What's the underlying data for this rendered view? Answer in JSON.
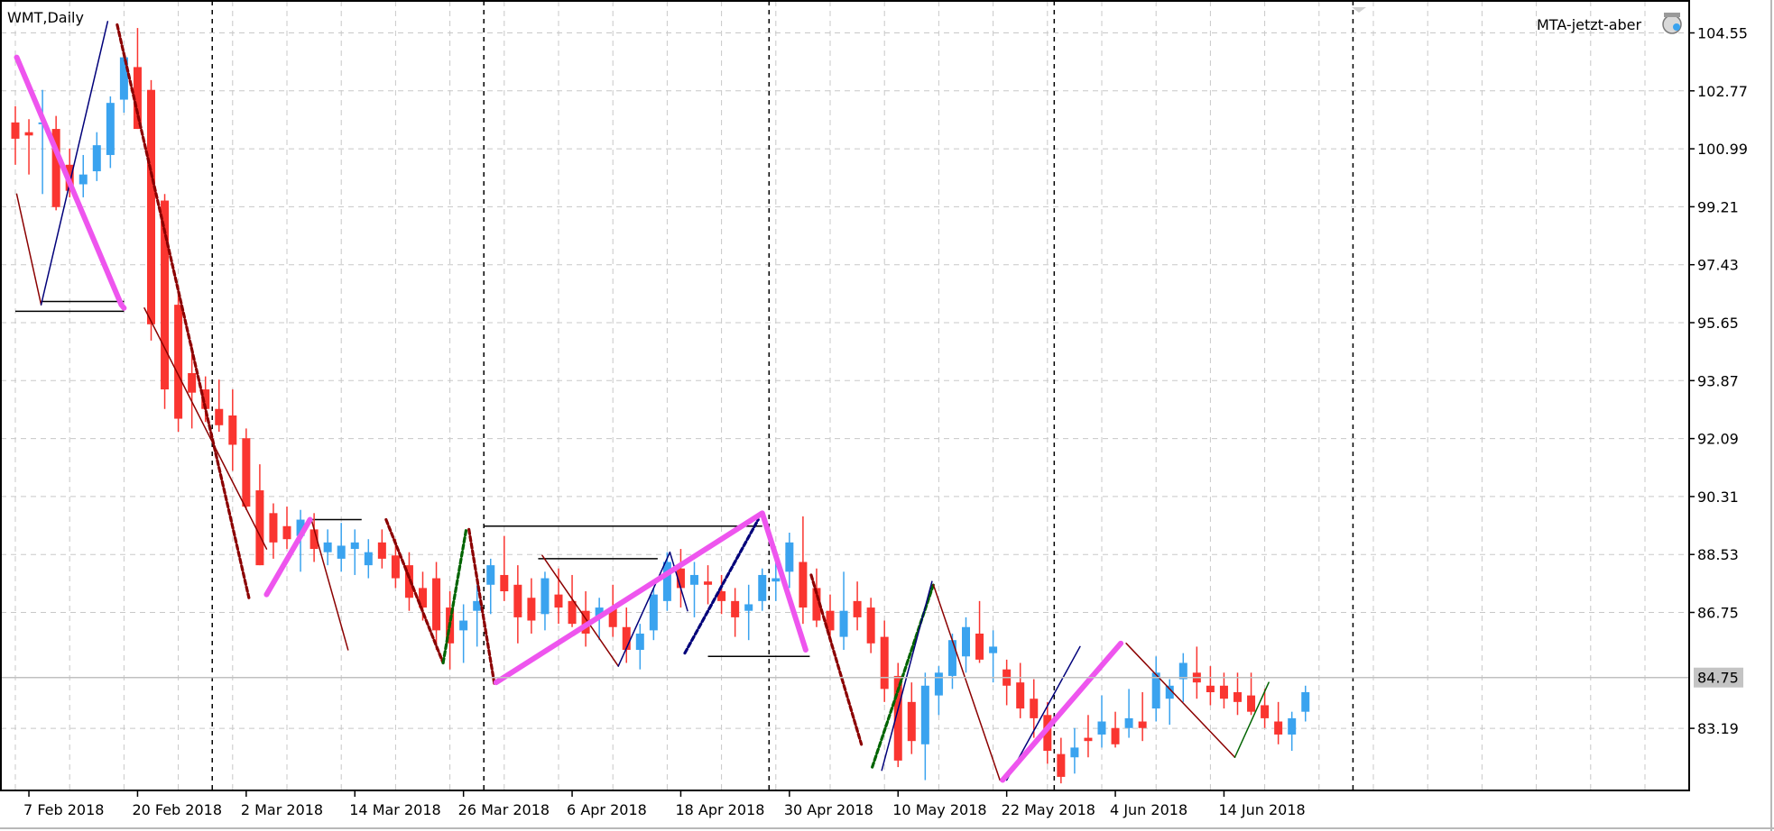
{
  "chart_data": {
    "type": "candlestick",
    "title": "WMT,Daily",
    "indicator_label": "MTA-jetzt-aber",
    "current_price_label": "84.75",
    "current_price": 84.75,
    "ylim": [
      81.3,
      106.1
    ],
    "y_ticks": [
      "104.55",
      "102.77",
      "100.99",
      "99.21",
      "97.43",
      "95.65",
      "93.87",
      "92.09",
      "90.31",
      "88.53",
      "86.75",
      "84.75",
      "83.19"
    ],
    "x_ticks": [
      {
        "label": "7 Feb 2018",
        "bar": 1
      },
      {
        "label": "20 Feb 2018",
        "bar": 9
      },
      {
        "label": "2 Mar 2018",
        "bar": 17
      },
      {
        "label": "14 Mar 2018",
        "bar": 25
      },
      {
        "label": "26 Mar 2018",
        "bar": 33
      },
      {
        "label": "6 Apr 2018",
        "bar": 41
      },
      {
        "label": "18 Apr 2018",
        "bar": 49
      },
      {
        "label": "30 Apr 2018",
        "bar": 57
      },
      {
        "label": "10 May 2018",
        "bar": 65
      },
      {
        "label": "22 May 2018",
        "bar": 73
      },
      {
        "label": "4 Jun 2018",
        "bar": 81
      },
      {
        "label": "14 Jun 2018",
        "bar": 89
      }
    ],
    "period_separators_bar": [
      14.5,
      34.5,
      55.5,
      76.5,
      98.5
    ],
    "bar_count": 115,
    "candles": [
      [
        101.8,
        102.3,
        100.5,
        101.3
      ],
      [
        101.5,
        101.9,
        100.2,
        101.4
      ],
      [
        101.8,
        102.8,
        99.6,
        101.8
      ],
      [
        101.6,
        102.0,
        99.1,
        99.2
      ],
      [
        100.5,
        101.0,
        99.5,
        99.7
      ],
      [
        99.9,
        100.8,
        99.5,
        100.2
      ],
      [
        100.3,
        101.5,
        100.0,
        101.1
      ],
      [
        100.8,
        102.6,
        100.4,
        102.4
      ],
      [
        102.5,
        104.0,
        102.1,
        103.8
      ],
      [
        103.5,
        104.7,
        101.6,
        101.6
      ],
      [
        102.8,
        103.1,
        95.1,
        95.6
      ],
      [
        99.4,
        99.6,
        93.0,
        93.6
      ],
      [
        96.2,
        96.8,
        92.3,
        92.7
      ],
      [
        94.1,
        95.0,
        92.4,
        93.5
      ],
      [
        93.6,
        94.0,
        92.6,
        93.0
      ],
      [
        93.0,
        93.9,
        92.3,
        92.5
      ],
      [
        92.8,
        93.6,
        91.1,
        91.9
      ],
      [
        92.1,
        92.4,
        89.9,
        90.0
      ],
      [
        90.5,
        91.3,
        88.2,
        88.2
      ],
      [
        89.8,
        90.1,
        88.4,
        88.9
      ],
      [
        89.4,
        90.0,
        88.7,
        89.0
      ],
      [
        89.1,
        89.9,
        88.0,
        89.6
      ],
      [
        89.3,
        89.8,
        88.3,
        88.7
      ],
      [
        88.6,
        89.3,
        88.2,
        88.9
      ],
      [
        88.4,
        89.5,
        88.0,
        88.8
      ],
      [
        88.7,
        89.3,
        87.9,
        88.9
      ],
      [
        88.2,
        89.0,
        87.8,
        88.6
      ],
      [
        88.9,
        89.3,
        88.1,
        88.4
      ],
      [
        88.5,
        89.0,
        87.5,
        87.8
      ],
      [
        88.2,
        88.6,
        86.8,
        87.2
      ],
      [
        87.5,
        88.0,
        86.5,
        86.9
      ],
      [
        87.8,
        88.3,
        85.6,
        86.2
      ],
      [
        86.9,
        87.4,
        85.0,
        85.8
      ],
      [
        86.2,
        87.0,
        85.2,
        86.5
      ],
      [
        86.8,
        87.6,
        85.7,
        87.1
      ],
      [
        87.6,
        88.4,
        86.7,
        88.2
      ],
      [
        87.9,
        89.1,
        87.1,
        87.4
      ],
      [
        87.6,
        88.2,
        85.8,
        86.6
      ],
      [
        87.2,
        87.8,
        86.1,
        86.5
      ],
      [
        86.7,
        88.0,
        86.2,
        87.8
      ],
      [
        87.3,
        88.1,
        86.4,
        86.9
      ],
      [
        87.1,
        87.9,
        86.3,
        86.4
      ],
      [
        86.8,
        87.4,
        85.7,
        86.1
      ],
      [
        86.6,
        87.2,
        85.9,
        86.9
      ],
      [
        86.9,
        87.6,
        86.0,
        86.3
      ],
      [
        86.3,
        86.9,
        85.2,
        85.6
      ],
      [
        85.6,
        86.4,
        85.0,
        86.1
      ],
      [
        86.2,
        87.5,
        85.9,
        87.3
      ],
      [
        87.1,
        88.6,
        86.8,
        88.3
      ],
      [
        88.1,
        88.7,
        86.9,
        87.5
      ],
      [
        87.6,
        88.3,
        86.6,
        87.9
      ],
      [
        87.7,
        88.2,
        87.0,
        87.6
      ],
      [
        87.4,
        87.9,
        86.7,
        87.1
      ],
      [
        87.1,
        87.5,
        86.0,
        86.6
      ],
      [
        86.8,
        87.6,
        85.9,
        87.0
      ],
      [
        87.1,
        88.1,
        86.8,
        87.9
      ],
      [
        87.7,
        88.6,
        87.1,
        87.8
      ],
      [
        88.0,
        89.2,
        87.5,
        88.9
      ],
      [
        88.3,
        89.7,
        86.4,
        86.9
      ],
      [
        87.5,
        88.1,
        86.3,
        86.5
      ],
      [
        86.8,
        87.3,
        85.9,
        86.2
      ],
      [
        86.0,
        88.0,
        85.6,
        86.8
      ],
      [
        87.1,
        87.7,
        86.2,
        86.6
      ],
      [
        86.9,
        87.2,
        85.5,
        85.8
      ],
      [
        86.0,
        86.5,
        84.0,
        84.4
      ],
      [
        84.8,
        85.2,
        82.0,
        82.2
      ],
      [
        84.0,
        84.6,
        82.4,
        82.8
      ],
      [
        82.7,
        84.9,
        81.6,
        84.5
      ],
      [
        84.2,
        85.1,
        83.6,
        84.9
      ],
      [
        84.8,
        86.1,
        84.4,
        85.9
      ],
      [
        85.4,
        86.6,
        84.9,
        86.3
      ],
      [
        86.1,
        87.1,
        85.2,
        85.3
      ],
      [
        85.5,
        86.2,
        84.6,
        85.7
      ],
      [
        85.0,
        85.3,
        83.9,
        84.5
      ],
      [
        84.6,
        85.2,
        83.5,
        83.8
      ],
      [
        84.1,
        84.7,
        82.9,
        83.5
      ],
      [
        83.6,
        84.0,
        82.1,
        82.5
      ],
      [
        82.4,
        82.9,
        81.5,
        81.7
      ],
      [
        82.3,
        83.2,
        81.8,
        82.6
      ],
      [
        82.9,
        83.6,
        82.3,
        82.8
      ],
      [
        83.0,
        84.2,
        82.6,
        83.4
      ],
      [
        83.2,
        83.7,
        82.6,
        82.7
      ],
      [
        83.2,
        84.4,
        82.9,
        83.5
      ],
      [
        83.4,
        84.3,
        82.8,
        83.2
      ],
      [
        83.8,
        85.4,
        83.4,
        84.9
      ],
      [
        84.1,
        84.7,
        83.3,
        84.5
      ],
      [
        84.7,
        85.5,
        84.0,
        85.2
      ],
      [
        84.9,
        85.7,
        84.1,
        84.6
      ],
      [
        84.5,
        85.1,
        83.9,
        84.3
      ],
      [
        84.5,
        84.9,
        83.8,
        84.1
      ],
      [
        84.3,
        84.9,
        83.6,
        84.0
      ],
      [
        84.2,
        84.9,
        83.6,
        83.7
      ],
      [
        83.9,
        84.4,
        83.2,
        83.5
      ],
      [
        83.4,
        84.0,
        82.7,
        83.0
      ],
      [
        83.0,
        83.7,
        82.5,
        83.5
      ],
      [
        83.7,
        84.5,
        83.4,
        84.3
      ]
    ],
    "zigzag_lines": [
      {
        "style": "dashed-darkred",
        "points": [
          [
            7.5,
            104.8
          ],
          [
            17.2,
            87.2
          ]
        ]
      },
      {
        "style": "dashed-darkred",
        "points": [
          [
            27.3,
            89.6
          ],
          [
            31.5,
            85.2
          ]
        ]
      },
      {
        "style": "dashed-green",
        "points": [
          [
            31.5,
            85.2
          ],
          [
            33.2,
            89.3
          ]
        ]
      },
      {
        "style": "dashed-darkred",
        "points": [
          [
            33.4,
            89.3
          ],
          [
            35.3,
            84.5
          ]
        ]
      },
      {
        "style": "dashed-navy",
        "points": [
          [
            49.3,
            85.5
          ],
          [
            54.7,
            89.6
          ]
        ]
      },
      {
        "style": "dashed-darkred",
        "points": [
          [
            58.6,
            87.9
          ],
          [
            62.3,
            82.7
          ]
        ]
      },
      {
        "style": "dashed-green",
        "points": [
          [
            63.1,
            82.0
          ],
          [
            67.6,
            87.6
          ]
        ]
      },
      {
        "style": "thin-darkred",
        "points": [
          [
            0.1,
            99.6
          ],
          [
            1.9,
            96.2
          ]
        ]
      },
      {
        "style": "thin-darkred",
        "points": [
          [
            9.5,
            96.1
          ],
          [
            18.5,
            88.7
          ]
        ]
      },
      {
        "style": "thin-darkred",
        "points": [
          [
            21.8,
            89.6
          ],
          [
            24.5,
            85.6
          ]
        ]
      },
      {
        "style": "thin-darkred",
        "points": [
          [
            38.8,
            88.5
          ],
          [
            44.4,
            85.1
          ]
        ]
      },
      {
        "style": "thin-darkred",
        "points": [
          [
            67.6,
            87.6
          ],
          [
            72.5,
            81.6
          ]
        ]
      },
      {
        "style": "thin-darkred",
        "points": [
          [
            81.8,
            85.8
          ],
          [
            89.8,
            82.3
          ]
        ]
      },
      {
        "style": "thin-green",
        "points": [
          [
            89.8,
            82.3
          ],
          [
            92.3,
            84.6
          ]
        ]
      },
      {
        "style": "thin-navy",
        "points": [
          [
            1.9,
            96.2
          ],
          [
            6.8,
            104.9
          ]
        ]
      },
      {
        "style": "thin-navy",
        "points": [
          [
            44.4,
            85.1
          ],
          [
            48.2,
            88.6
          ]
        ]
      },
      {
        "style": "thin-navy",
        "points": [
          [
            48.2,
            88.6
          ],
          [
            49.5,
            86.8
          ]
        ]
      },
      {
        "style": "thin-navy",
        "points": [
          [
            63.8,
            81.9
          ],
          [
            67.5,
            87.7
          ]
        ]
      },
      {
        "style": "thin-navy",
        "points": [
          [
            73.0,
            81.6
          ],
          [
            78.4,
            85.7
          ]
        ]
      },
      {
        "style": "thick-magenta",
        "points": [
          [
            0.1,
            103.8
          ],
          [
            7.8,
            96.2
          ],
          [
            8.0,
            96.1
          ]
        ]
      },
      {
        "style": "thick-magenta",
        "points": [
          [
            18.5,
            87.3
          ],
          [
            21.7,
            89.6
          ]
        ]
      },
      {
        "style": "thick-magenta",
        "points": [
          [
            35.4,
            84.6
          ],
          [
            55.0,
            89.8
          ],
          [
            58.2,
            85.6
          ]
        ]
      },
      {
        "style": "thick-magenta",
        "points": [
          [
            72.7,
            81.6
          ],
          [
            81.4,
            85.8
          ]
        ]
      }
    ],
    "horizontal_levels": [
      {
        "from_bar": 0,
        "to_bar": 8,
        "price": 96.0
      },
      {
        "from_bar": 1.9,
        "to_bar": 8,
        "price": 96.3
      },
      {
        "from_bar": 21.7,
        "to_bar": 25.5,
        "price": 89.6
      },
      {
        "from_bar": 34.5,
        "to_bar": 55,
        "price": 89.4
      },
      {
        "from_bar": 38.5,
        "to_bar": 47.3,
        "price": 88.4
      },
      {
        "from_bar": 51,
        "to_bar": 58.5,
        "price": 85.4
      }
    ],
    "bull_color": "#3aa3ef",
    "bear_color": "#fa3530",
    "grid": true
  }
}
